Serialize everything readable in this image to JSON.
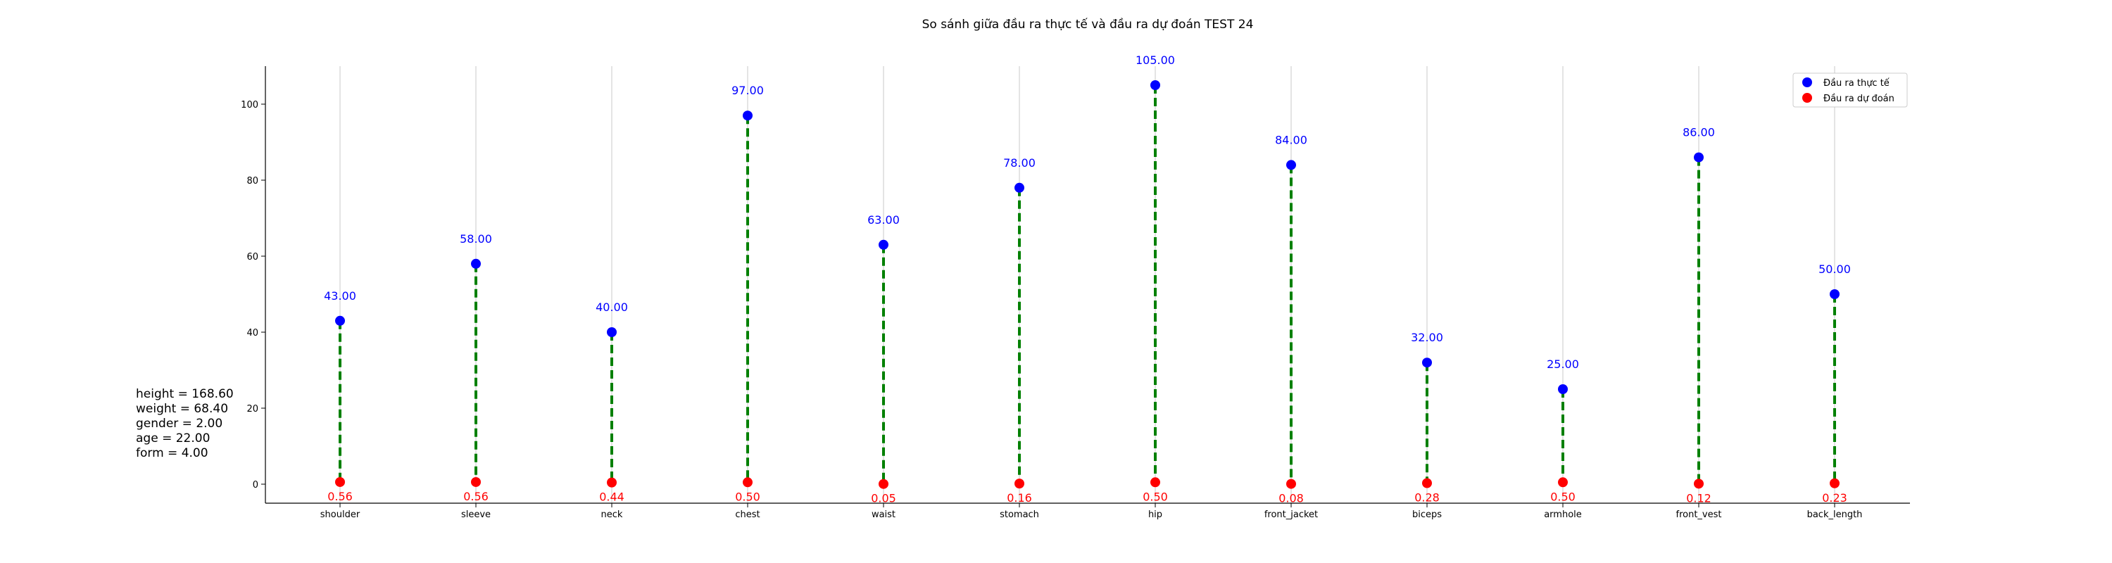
{
  "chart_data": {
    "type": "scatter",
    "title": "So sánh giữa đầu ra thực tế và đầu ra dự đoán TEST 24",
    "categories": [
      "shoulder",
      "sleeve",
      "neck",
      "chest",
      "waist",
      "stomach",
      "hip",
      "front_jacket",
      "biceps",
      "armhole",
      "front_vest",
      "back_length"
    ],
    "series": [
      {
        "name": "Đầu ra thực tế",
        "color": "#0000ff",
        "values": [
          43.0,
          58.0,
          40.0,
          97.0,
          63.0,
          78.0,
          105.0,
          84.0,
          32.0,
          25.0,
          86.0,
          50.0
        ],
        "labels": [
          "43.00",
          "58.00",
          "40.00",
          "97.00",
          "63.00",
          "78.00",
          "105.00",
          "84.00",
          "32.00",
          "25.00",
          "86.00",
          "50.00"
        ]
      },
      {
        "name": "Đầu ra dự đoán",
        "color": "#ff0000",
        "values": [
          0.56,
          0.56,
          0.44,
          0.5,
          0.05,
          0.16,
          0.5,
          0.08,
          0.28,
          0.5,
          0.12,
          0.23
        ],
        "labels": [
          "0.56",
          "0.56",
          "0.44",
          "0.50",
          "0.05",
          "0.16",
          "0.50",
          "0.08",
          "0.28",
          "0.50",
          "0.12",
          "0.23"
        ]
      }
    ],
    "connector_color": "#008000",
    "connector_style": "dashed",
    "ylim": [
      -5,
      110
    ],
    "yticks": [
      0,
      20,
      40,
      60,
      80,
      100
    ],
    "xlabel": "",
    "ylabel": "",
    "grid": "vertical",
    "legend_position": "top-right"
  },
  "info_box": {
    "lines": [
      "height = 168.60",
      "weight = 68.40",
      "gender = 2.00",
      "age = 22.00",
      "form = 4.00"
    ]
  }
}
